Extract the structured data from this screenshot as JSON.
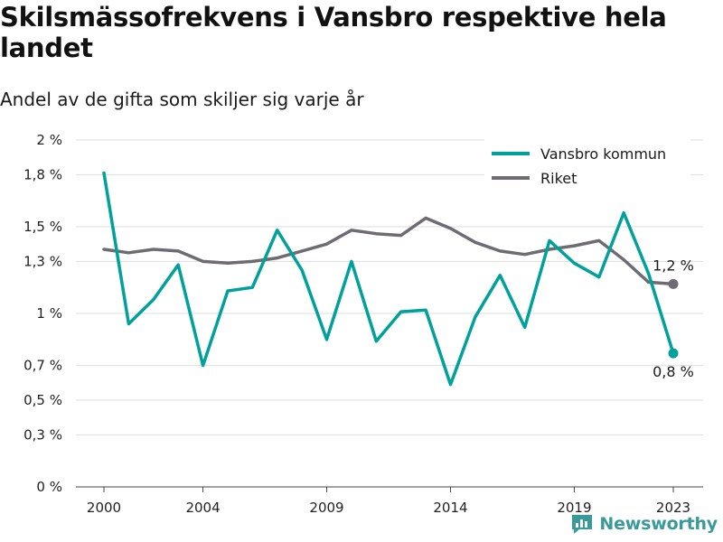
{
  "title": "Skilsmässofrekvens i Vansbro respektive hela landet",
  "subtitle": "Andel av de gifta som skiljer sig varje år",
  "brand": "Newsworthy",
  "colors": {
    "vansbro": "#00a19a",
    "riket": "#6e6b72",
    "grid": "#dddddd",
    "brand": "#3a9a9a"
  },
  "chart_data": {
    "type": "line",
    "title": "Skilsmässofrekvens i Vansbro respektive hela landet",
    "subtitle": "Andel av de gifta som skiljer sig varje år",
    "xlabel": "",
    "ylabel": "",
    "x": [
      2000,
      2001,
      2002,
      2003,
      2004,
      2005,
      2006,
      2007,
      2008,
      2009,
      2010,
      2011,
      2012,
      2013,
      2014,
      2015,
      2016,
      2017,
      2018,
      2019,
      2020,
      2021,
      2022,
      2023
    ],
    "x_ticks": [
      2000,
      2004,
      2009,
      2014,
      2019,
      2023
    ],
    "y_ticks": [
      0,
      0.3,
      0.5,
      0.7,
      1,
      1.3,
      1.5,
      1.8,
      2
    ],
    "y_tick_labels": [
      "0 %",
      "0,3 %",
      "0,5 %",
      "0,7 %",
      "1 %",
      "1,3 %",
      "1,5 %",
      "1,8 %",
      "2 %"
    ],
    "ylim": [
      0,
      2
    ],
    "grid": true,
    "legend_position": "top-right",
    "series": [
      {
        "name": "Vansbro kommun",
        "color": "#00a19a",
        "values": [
          1.81,
          0.94,
          1.08,
          1.28,
          0.7,
          1.13,
          1.15,
          1.48,
          1.25,
          0.85,
          1.3,
          0.84,
          1.01,
          1.02,
          0.59,
          0.98,
          1.22,
          0.92,
          1.42,
          1.29,
          1.21,
          1.58,
          1.23,
          0.77
        ],
        "end_label": "0,8 %"
      },
      {
        "name": "Riket",
        "color": "#6e6b72",
        "values": [
          1.37,
          1.35,
          1.37,
          1.36,
          1.3,
          1.29,
          1.3,
          1.32,
          1.36,
          1.4,
          1.48,
          1.46,
          1.45,
          1.55,
          1.49,
          1.41,
          1.36,
          1.34,
          1.37,
          1.39,
          1.42,
          1.31,
          1.18,
          1.17
        ],
        "end_label": "1,2 %"
      }
    ]
  }
}
